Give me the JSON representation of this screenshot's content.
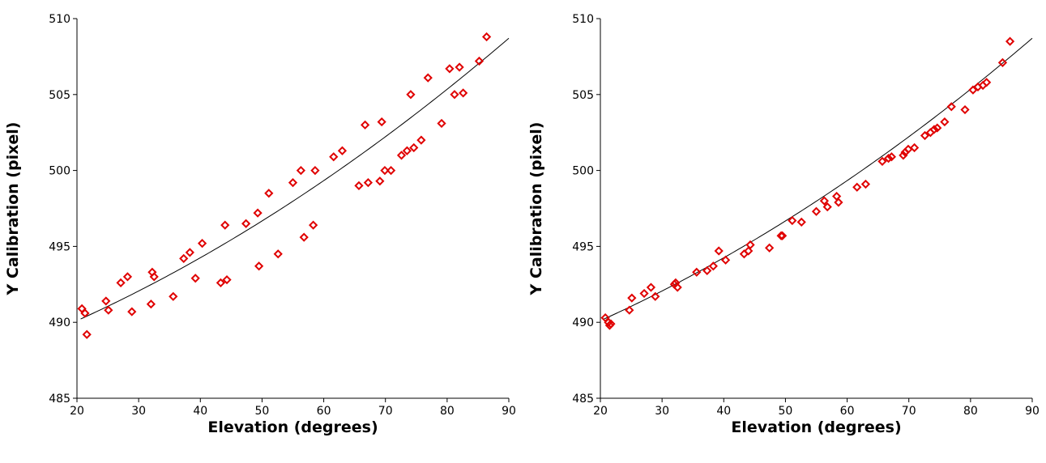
{
  "chart_data": [
    {
      "type": "scatter",
      "title": "",
      "xlabel": "Elevation (degrees)",
      "ylabel": "Y Calibration (pixel)",
      "xlim": [
        20,
        90
      ],
      "ylim": [
        485,
        510
      ],
      "xticks": [
        "20",
        "30",
        "40",
        "50",
        "60",
        "70",
        "80",
        "90"
      ],
      "yticks": [
        "485",
        "490",
        "495",
        "500",
        "505",
        "510"
      ],
      "grid": false,
      "marker": "diamond",
      "marker_color": "#e00000",
      "fit_curve": {
        "coefficients": [
          486.9,
          0.137,
          0.00117
        ],
        "color": "#000000"
      },
      "series": [
        {
          "points": [
            [
              20.8,
              490.9
            ],
            [
              21.3,
              490.6
            ],
            [
              21.6,
              489.2
            ],
            [
              24.7,
              491.4
            ],
            [
              25.1,
              490.8
            ],
            [
              27.1,
              492.6
            ],
            [
              28.2,
              493.0
            ],
            [
              28.9,
              490.7
            ],
            [
              32.0,
              491.2
            ],
            [
              32.2,
              493.3
            ],
            [
              32.5,
              493.0
            ],
            [
              35.6,
              491.7
            ],
            [
              37.3,
              494.2
            ],
            [
              38.3,
              494.6
            ],
            [
              39.2,
              492.9
            ],
            [
              40.3,
              495.2
            ],
            [
              43.3,
              492.6
            ],
            [
              44.0,
              496.4
            ],
            [
              44.3,
              492.8
            ],
            [
              47.4,
              496.5
            ],
            [
              49.3,
              497.2
            ],
            [
              49.5,
              493.7
            ],
            [
              51.1,
              498.5
            ],
            [
              52.6,
              494.5
            ],
            [
              55.0,
              499.2
            ],
            [
              56.3,
              500.0
            ],
            [
              56.8,
              495.6
            ],
            [
              58.3,
              496.4
            ],
            [
              58.6,
              500.0
            ],
            [
              61.6,
              500.9
            ],
            [
              63.0,
              501.3
            ],
            [
              65.7,
              499.0
            ],
            [
              66.7,
              503.0
            ],
            [
              67.2,
              499.2
            ],
            [
              69.1,
              499.3
            ],
            [
              69.4,
              503.2
            ],
            [
              69.9,
              500.0
            ],
            [
              70.9,
              500.0
            ],
            [
              72.6,
              501.0
            ],
            [
              73.5,
              501.3
            ],
            [
              74.1,
              505.0
            ],
            [
              74.6,
              501.5
            ],
            [
              75.8,
              502.0
            ],
            [
              76.9,
              506.1
            ],
            [
              79.1,
              503.1
            ],
            [
              80.4,
              506.7
            ],
            [
              81.2,
              505.0
            ],
            [
              82.0,
              506.8
            ],
            [
              82.6,
              505.1
            ],
            [
              85.2,
              507.2
            ],
            [
              86.4,
              508.8
            ]
          ]
        }
      ]
    },
    {
      "type": "scatter",
      "title": "",
      "xlabel": "Elevation (degrees)",
      "ylabel": "Y Calibration (pixel)",
      "xlim": [
        20,
        90
      ],
      "ylim": [
        485,
        510
      ],
      "xticks": [
        "20",
        "30",
        "40",
        "50",
        "60",
        "70",
        "80",
        "90"
      ],
      "yticks": [
        "485",
        "490",
        "495",
        "500",
        "505",
        "510"
      ],
      "grid": false,
      "marker": "diamond",
      "marker_color": "#e00000",
      "fit_curve": {
        "coefficients": [
          486.9,
          0.137,
          0.00117
        ],
        "color": "#000000"
      },
      "series": [
        {
          "points": [
            [
              20.8,
              490.3
            ],
            [
              21.3,
              490.0
            ],
            [
              21.5,
              489.8
            ],
            [
              21.7,
              489.9
            ],
            [
              24.7,
              490.8
            ],
            [
              25.1,
              491.6
            ],
            [
              27.1,
              491.9
            ],
            [
              28.2,
              492.3
            ],
            [
              28.9,
              491.7
            ],
            [
              32.0,
              492.5
            ],
            [
              32.2,
              492.6
            ],
            [
              32.5,
              492.3
            ],
            [
              35.6,
              493.3
            ],
            [
              37.3,
              493.4
            ],
            [
              38.3,
              493.7
            ],
            [
              39.2,
              494.7
            ],
            [
              40.3,
              494.1
            ],
            [
              43.3,
              494.5
            ],
            [
              44.0,
              494.7
            ],
            [
              44.3,
              495.1
            ],
            [
              47.4,
              494.9
            ],
            [
              49.3,
              495.7
            ],
            [
              49.5,
              495.7
            ],
            [
              51.1,
              496.7
            ],
            [
              52.6,
              496.6
            ],
            [
              55.0,
              497.3
            ],
            [
              56.3,
              498.0
            ],
            [
              56.8,
              497.6
            ],
            [
              58.3,
              498.3
            ],
            [
              58.6,
              497.9
            ],
            [
              61.6,
              498.9
            ],
            [
              63.0,
              499.1
            ],
            [
              65.7,
              500.6
            ],
            [
              66.7,
              500.8
            ],
            [
              67.2,
              500.9
            ],
            [
              69.1,
              501.0
            ],
            [
              69.4,
              501.2
            ],
            [
              69.9,
              501.4
            ],
            [
              70.9,
              501.5
            ],
            [
              72.6,
              502.3
            ],
            [
              73.5,
              502.5
            ],
            [
              74.1,
              502.7
            ],
            [
              74.6,
              502.8
            ],
            [
              75.8,
              503.2
            ],
            [
              76.9,
              504.2
            ],
            [
              79.1,
              504.0
            ],
            [
              80.4,
              505.3
            ],
            [
              81.2,
              505.5
            ],
            [
              82.0,
              505.6
            ],
            [
              82.6,
              505.8
            ],
            [
              85.2,
              507.1
            ],
            [
              86.4,
              508.5
            ]
          ]
        }
      ]
    }
  ]
}
